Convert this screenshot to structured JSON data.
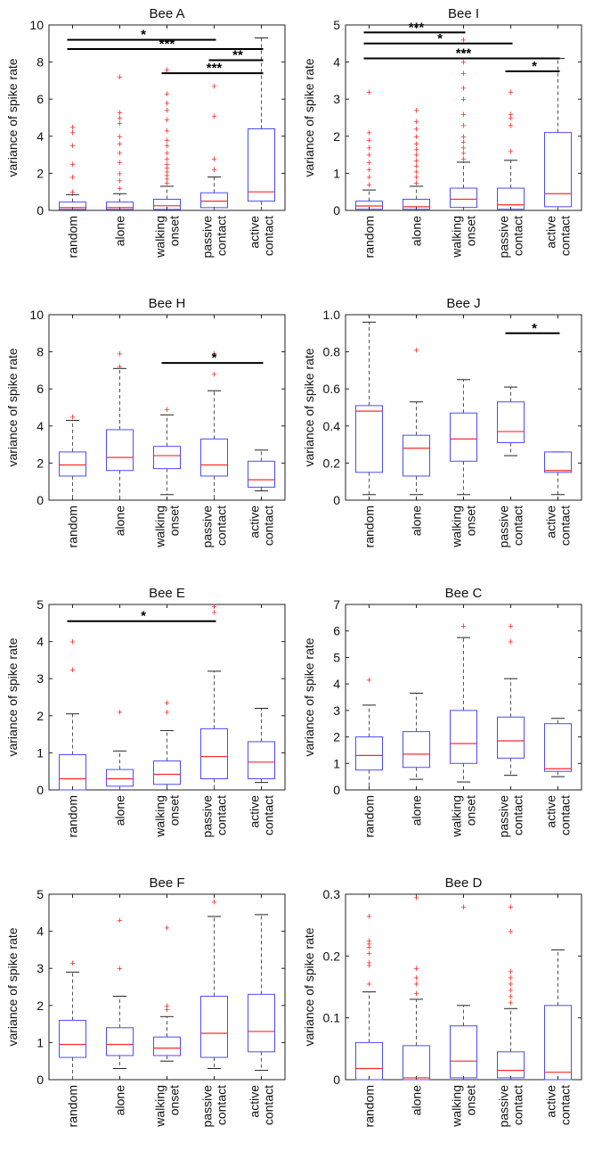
{
  "colors": {
    "box": "#4b4bff",
    "median": "#ff2a2a",
    "outlier": "#ff2a2a",
    "whisker": "#555555",
    "axis": "#222222",
    "significance": "#000000"
  },
  "chart_data": [
    {
      "type": "box",
      "title": "Bee A",
      "ylabel": "variance of spike rate",
      "ylim": [
        0,
        10
      ],
      "yticks": [
        0,
        2,
        4,
        6,
        8,
        10
      ],
      "categories": [
        "random",
        "alone",
        "walking onset",
        "passive contact",
        "active contact"
      ],
      "boxes": [
        {
          "category": "random",
          "whisker_low": 0,
          "q1": 0.05,
          "median": 0.15,
          "q3": 0.45,
          "whisker_high": 0.85,
          "outliers": [
            1.0,
            1.8,
            2.5,
            3.5,
            4.2,
            4.5
          ]
        },
        {
          "category": "alone",
          "whisker_low": 0,
          "q1": 0.05,
          "median": 0.15,
          "q3": 0.45,
          "whisker_high": 0.9,
          "outliers": [
            1.2,
            1.6,
            2.0,
            2.6,
            3.1,
            3.6,
            4.0,
            4.7,
            5.0,
            5.3,
            7.2
          ]
        },
        {
          "category": "walking onset",
          "whisker_low": 0,
          "q1": 0.05,
          "median": 0.25,
          "q3": 0.6,
          "whisker_high": 1.3,
          "outliers": [
            1.5,
            1.7,
            1.9,
            2.1,
            2.3,
            2.5,
            2.8,
            3.1,
            3.5,
            3.8,
            4.3,
            4.9,
            5.4,
            5.8,
            6.3,
            7.6
          ]
        },
        {
          "category": "passive contact",
          "whisker_low": 0,
          "q1": 0.15,
          "median": 0.5,
          "q3": 0.95,
          "whisker_high": 1.8,
          "outliers": [
            2.2,
            2.8,
            5.1,
            6.7
          ]
        },
        {
          "category": "active contact",
          "whisker_low": 0,
          "q1": 0.5,
          "median": 1.0,
          "q3": 4.4,
          "whisker_high": 9.3,
          "outliers": []
        }
      ],
      "significance": [
        {
          "from": "random",
          "to": "passive contact",
          "y": 9.2,
          "label": "*"
        },
        {
          "from": "random",
          "to": "active contact",
          "y": 8.7,
          "label": "***"
        },
        {
          "from": "passive contact",
          "to": "active contact",
          "y": 8.1,
          "label": "**"
        },
        {
          "from": "walking onset",
          "to": "active contact",
          "y": 7.4,
          "label": "***"
        }
      ]
    },
    {
      "type": "box",
      "title": "Bee I",
      "ylabel": "variance of spike rate",
      "ylim": [
        0,
        5
      ],
      "yticks": [
        0,
        1,
        2,
        3,
        4,
        5
      ],
      "categories": [
        "random",
        "alone",
        "walking onset",
        "passive contact",
        "active contact"
      ],
      "boxes": [
        {
          "category": "random",
          "whisker_low": 0,
          "q1": 0.03,
          "median": 0.12,
          "q3": 0.25,
          "whisker_high": 0.55,
          "outliers": [
            0.7,
            0.9,
            1.1,
            1.3,
            1.5,
            1.7,
            1.9,
            2.1,
            3.2
          ]
        },
        {
          "category": "alone",
          "whisker_low": 0,
          "q1": 0.03,
          "median": 0.1,
          "q3": 0.3,
          "whisker_high": 0.65,
          "outliers": [
            0.75,
            0.9,
            1.05,
            1.2,
            1.35,
            1.5,
            1.65,
            1.8,
            2.0,
            2.2,
            2.4,
            2.7
          ]
        },
        {
          "category": "walking onset",
          "whisker_low": 0,
          "q1": 0.08,
          "median": 0.3,
          "q3": 0.6,
          "whisker_high": 1.3,
          "outliers": [
            1.4,
            1.55,
            1.7,
            1.85,
            2.0,
            2.3,
            2.6,
            3.0,
            3.3,
            3.7,
            4.0,
            4.3,
            4.6
          ]
        },
        {
          "category": "passive contact",
          "whisker_low": 0,
          "q1": 0.03,
          "median": 0.15,
          "q3": 0.6,
          "whisker_high": 1.35,
          "outliers": [
            1.6,
            2.3,
            2.5,
            2.6,
            3.2
          ]
        },
        {
          "category": "active contact",
          "whisker_low": 0,
          "q1": 0.1,
          "median": 0.45,
          "q3": 2.1,
          "whisker_high": 4.1,
          "outliers": []
        }
      ],
      "significance": [
        {
          "from": "random",
          "to": "walking onset",
          "y": 4.8,
          "label": "***"
        },
        {
          "from": "random",
          "to": "passive contact",
          "y": 4.5,
          "label": "*"
        },
        {
          "from": "random",
          "to": "active contact",
          "y": 4.1,
          "label": "***"
        },
        {
          "from": "passive contact",
          "to": "active contact",
          "y": 3.75,
          "label": "*"
        }
      ]
    },
    {
      "type": "box",
      "title": "Bee H",
      "ylabel": "variance of spike rate",
      "ylim": [
        0,
        10
      ],
      "yticks": [
        0,
        2,
        4,
        6,
        8,
        10
      ],
      "categories": [
        "random",
        "alone",
        "walking onset",
        "passive contact",
        "active contact"
      ],
      "boxes": [
        {
          "category": "random",
          "whisker_low": 0,
          "q1": 1.3,
          "median": 1.9,
          "q3": 2.6,
          "whisker_high": 4.3,
          "outliers": [
            4.5
          ]
        },
        {
          "category": "alone",
          "whisker_low": 0,
          "q1": 1.6,
          "median": 2.3,
          "q3": 3.8,
          "whisker_high": 7.1,
          "outliers": [
            7.2,
            7.9
          ]
        },
        {
          "category": "walking onset",
          "whisker_low": 0.3,
          "q1": 1.7,
          "median": 2.4,
          "q3": 2.9,
          "whisker_high": 4.6,
          "outliers": [
            4.9
          ]
        },
        {
          "category": "passive contact",
          "whisker_low": 0,
          "q1": 1.3,
          "median": 1.9,
          "q3": 3.3,
          "whisker_high": 5.9,
          "outliers": [
            6.8,
            7.9
          ]
        },
        {
          "category": "active contact",
          "whisker_low": 0.5,
          "q1": 0.7,
          "median": 1.1,
          "q3": 2.1,
          "whisker_high": 2.7,
          "outliers": []
        }
      ],
      "significance": [
        {
          "from": "walking onset",
          "to": "active contact",
          "y": 7.4,
          "label": "*"
        }
      ]
    },
    {
      "type": "box",
      "title": "Bee J",
      "ylabel": "variance of spike rate",
      "ylim": [
        0,
        1.0
      ],
      "yticks": [
        0,
        0.2,
        0.4,
        0.6,
        0.8,
        1.0
      ],
      "ytick_labels": [
        "0",
        "0.2",
        "0.4",
        "0.6",
        "0.8",
        "1.0"
      ],
      "categories": [
        "random",
        "alone",
        "walking onset",
        "passive contact",
        "active contact"
      ],
      "boxes": [
        {
          "category": "random",
          "whisker_low": 0.03,
          "q1": 0.15,
          "median": 0.48,
          "q3": 0.51,
          "whisker_high": 0.96,
          "outliers": []
        },
        {
          "category": "alone",
          "whisker_low": 0.03,
          "q1": 0.13,
          "median": 0.28,
          "q3": 0.35,
          "whisker_high": 0.53,
          "outliers": [
            0.81
          ]
        },
        {
          "category": "walking onset",
          "whisker_low": 0.03,
          "q1": 0.21,
          "median": 0.33,
          "q3": 0.47,
          "whisker_high": 0.65,
          "outliers": []
        },
        {
          "category": "passive contact",
          "whisker_low": 0.24,
          "q1": 0.31,
          "median": 0.37,
          "q3": 0.53,
          "whisker_high": 0.61,
          "outliers": []
        },
        {
          "category": "active contact",
          "whisker_low": 0.03,
          "q1": 0.15,
          "median": 0.16,
          "q3": 0.26,
          "whisker_high": 0.26,
          "outliers": []
        }
      ],
      "significance": [
        {
          "from": "passive contact",
          "to": "active contact",
          "y": 0.9,
          "label": "*"
        }
      ]
    },
    {
      "type": "box",
      "title": "Bee E",
      "ylabel": "variance of spike rate",
      "ylim": [
        0,
        5
      ],
      "yticks": [
        0,
        1,
        2,
        3,
        4,
        5
      ],
      "categories": [
        "random",
        "alone",
        "walking onset",
        "passive contact",
        "active contact"
      ],
      "boxes": [
        {
          "category": "random",
          "whisker_low": 0,
          "q1": 0,
          "median": 0.3,
          "q3": 0.95,
          "whisker_high": 2.05,
          "outliers": [
            3.25,
            4.0
          ]
        },
        {
          "category": "alone",
          "whisker_low": 0,
          "q1": 0.1,
          "median": 0.3,
          "q3": 0.55,
          "whisker_high": 1.05,
          "outliers": [
            2.1
          ]
        },
        {
          "category": "walking onset",
          "whisker_low": 0,
          "q1": 0.15,
          "median": 0.42,
          "q3": 0.78,
          "whisker_high": 1.6,
          "outliers": [
            2.1,
            2.35
          ]
        },
        {
          "category": "passive contact",
          "whisker_low": 0,
          "q1": 0.3,
          "median": 0.9,
          "q3": 1.65,
          "whisker_high": 3.2,
          "outliers": [
            4.8,
            4.95
          ]
        },
        {
          "category": "active contact",
          "whisker_low": 0.2,
          "q1": 0.3,
          "median": 0.75,
          "q3": 1.3,
          "whisker_high": 2.2,
          "outliers": []
        }
      ],
      "significance": [
        {
          "from": "random",
          "to": "passive contact",
          "y": 4.55,
          "label": "*"
        }
      ]
    },
    {
      "type": "box",
      "title": "Bee C",
      "ylabel": "variance of spike rate",
      "ylim": [
        0,
        7
      ],
      "yticks": [
        0,
        1,
        2,
        3,
        4,
        5,
        6,
        7
      ],
      "categories": [
        "random",
        "alone",
        "walking onset",
        "passive contact",
        "active contact"
      ],
      "boxes": [
        {
          "category": "random",
          "whisker_low": 0,
          "q1": 0.75,
          "median": 1.3,
          "q3": 2.0,
          "whisker_high": 3.2,
          "outliers": [
            4.15
          ]
        },
        {
          "category": "alone",
          "whisker_low": 0.4,
          "q1": 0.85,
          "median": 1.35,
          "q3": 2.2,
          "whisker_high": 3.65,
          "outliers": []
        },
        {
          "category": "walking onset",
          "whisker_low": 0.3,
          "q1": 1.0,
          "median": 1.75,
          "q3": 3.0,
          "whisker_high": 5.75,
          "outliers": [
            6.2
          ]
        },
        {
          "category": "passive contact",
          "whisker_low": 0.55,
          "q1": 1.2,
          "median": 1.85,
          "q3": 2.75,
          "whisker_high": 4.2,
          "outliers": [
            5.6,
            6.2
          ]
        },
        {
          "category": "active contact",
          "whisker_low": 0.5,
          "q1": 0.7,
          "median": 0.8,
          "q3": 2.5,
          "whisker_high": 2.7,
          "outliers": []
        }
      ],
      "significance": []
    },
    {
      "type": "box",
      "title": "Bee F",
      "ylabel": "variance of spike rate",
      "ylim": [
        0,
        5
      ],
      "yticks": [
        0,
        1,
        2,
        3,
        4,
        5
      ],
      "categories": [
        "random",
        "alone",
        "walking onset",
        "passive contact",
        "active contact"
      ],
      "boxes": [
        {
          "category": "random",
          "whisker_low": 0,
          "q1": 0.6,
          "median": 0.95,
          "q3": 1.6,
          "whisker_high": 2.9,
          "outliers": [
            3.15
          ]
        },
        {
          "category": "alone",
          "whisker_low": 0.3,
          "q1": 0.65,
          "median": 0.95,
          "q3": 1.4,
          "whisker_high": 2.25,
          "outliers": [
            3.0,
            4.3
          ]
        },
        {
          "category": "walking onset",
          "whisker_low": 0.5,
          "q1": 0.65,
          "median": 0.85,
          "q3": 1.15,
          "whisker_high": 1.7,
          "outliers": [
            1.9,
            2.0,
            4.1
          ]
        },
        {
          "category": "passive contact",
          "whisker_low": 0.3,
          "q1": 0.6,
          "median": 1.25,
          "q3": 2.25,
          "whisker_high": 4.4,
          "outliers": [
            4.8
          ]
        },
        {
          "category": "active contact",
          "whisker_low": 0.25,
          "q1": 0.75,
          "median": 1.3,
          "q3": 2.3,
          "whisker_high": 4.45,
          "outliers": []
        }
      ],
      "significance": []
    },
    {
      "type": "box",
      "title": "Bee D",
      "ylabel": "variance of spike rate",
      "ylim": [
        0,
        0.3
      ],
      "yticks": [
        0,
        0.1,
        0.2,
        0.3
      ],
      "ytick_labels": [
        "0",
        "0.1",
        "0.2",
        "0.3"
      ],
      "categories": [
        "random",
        "alone",
        "walking onset",
        "passive contact",
        "active contact"
      ],
      "boxes": [
        {
          "category": "random",
          "whisker_low": 0,
          "q1": 0,
          "median": 0.018,
          "q3": 0.06,
          "whisker_high": 0.142,
          "outliers": [
            0.155,
            0.185,
            0.19,
            0.205,
            0.215,
            0.22,
            0.225,
            0.265
          ]
        },
        {
          "category": "alone",
          "whisker_low": 0,
          "q1": 0,
          "median": 0.003,
          "q3": 0.055,
          "whisker_high": 0.13,
          "outliers": [
            0.14,
            0.155,
            0.165,
            0.18,
            0.295
          ]
        },
        {
          "category": "walking onset",
          "whisker_low": 0,
          "q1": 0.003,
          "median": 0.03,
          "q3": 0.087,
          "whisker_high": 0.12,
          "outliers": [
            0.28
          ]
        },
        {
          "category": "passive contact",
          "whisker_low": 0,
          "q1": 0.003,
          "median": 0.015,
          "q3": 0.045,
          "whisker_high": 0.115,
          "outliers": [
            0.125,
            0.135,
            0.145,
            0.155,
            0.165,
            0.175,
            0.24,
            0.28
          ]
        },
        {
          "category": "active contact",
          "whisker_low": 0,
          "q1": 0,
          "median": 0.012,
          "q3": 0.12,
          "whisker_high": 0.21,
          "outliers": []
        }
      ],
      "significance": []
    }
  ]
}
